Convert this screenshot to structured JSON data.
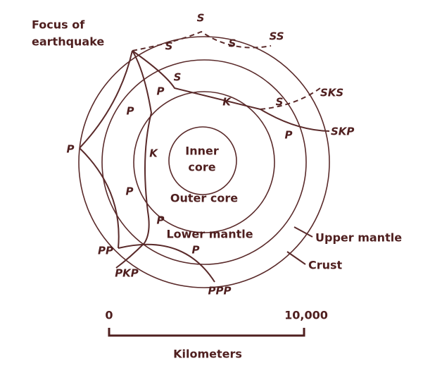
{
  "focus_label": [
    "Focus of",
    "earthquake"
  ],
  "layers": {
    "inner_core": [
      "Inner",
      "core"
    ],
    "outer_core": "Outer core",
    "lower_mantle": "Lower mantle",
    "upper_mantle": "Upper mantle",
    "crust": "Crust"
  },
  "waves": [
    "S",
    "SS",
    "S",
    "S",
    "S",
    "P",
    "K",
    "S",
    "SKS",
    "P",
    "P",
    "SKP",
    "P",
    "K",
    "P",
    "P",
    "PP",
    "P",
    "PKP",
    "PPP"
  ],
  "scale": {
    "start": "0",
    "end": "10,000",
    "unit": "Kilometers"
  }
}
